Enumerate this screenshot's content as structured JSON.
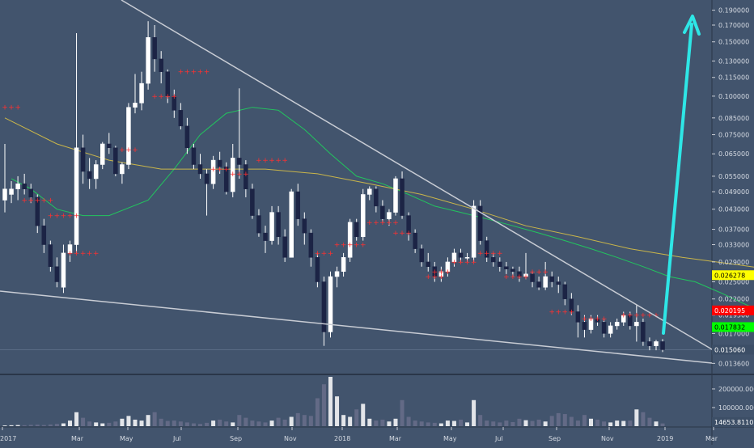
{
  "chart_data": {
    "type": "candlestick",
    "price_axis": {
      "scale": "log",
      "ticks": [
        "0.190000",
        "0.170000",
        "0.150000",
        "0.130000",
        "0.115000",
        "0.100000",
        "0.085000",
        "0.075000",
        "0.065000",
        "0.055000",
        "0.049000",
        "0.043000",
        "0.037000",
        "0.033000",
        "0.029000",
        "0.025000",
        "0.022000",
        "0.019500",
        "0.017000",
        "0.013600"
      ],
      "range": [
        0.0126,
        0.205
      ]
    },
    "time_axis": {
      "labels": [
        "2017",
        "Mar",
        "May",
        "Jul",
        "Sep",
        "Nov",
        "2018",
        "Mar",
        "May",
        "Jul",
        "Sep",
        "Nov",
        "2019",
        "Mar"
      ]
    },
    "price_badges": [
      {
        "label": "0.026278",
        "color": "#ffff00",
        "text_color": "#000000",
        "value": 0.026278
      },
      {
        "label": "0.020195",
        "color": "#ff0000",
        "text_color": "#ffffff",
        "value": 0.020195
      },
      {
        "label": "0.017832",
        "color": "#00ff00",
        "text_color": "#000000",
        "value": 0.017832
      },
      {
        "label": "0.015060",
        "color": "#3c4e66",
        "text_color": "#ffffff",
        "value": 0.01506
      }
    ],
    "volume_axis": {
      "ticks": [
        "200000.0000",
        "100000.0000"
      ],
      "current_label": "14653.8110",
      "max": 265000
    },
    "candles": [
      {
        "o": 0.046,
        "h": 0.07,
        "l": 0.042,
        "c": 0.05
      },
      {
        "o": 0.048,
        "h": 0.053,
        "l": 0.045,
        "c": 0.05
      },
      {
        "o": 0.05,
        "h": 0.055,
        "l": 0.046,
        "c": 0.052
      },
      {
        "o": 0.052,
        "h": 0.056,
        "l": 0.048,
        "c": 0.05
      },
      {
        "o": 0.05,
        "h": 0.052,
        "l": 0.045,
        "c": 0.047
      },
      {
        "o": 0.047,
        "h": 0.048,
        "l": 0.036,
        "c": 0.038
      },
      {
        "o": 0.038,
        "h": 0.04,
        "l": 0.031,
        "c": 0.033
      },
      {
        "o": 0.033,
        "h": 0.034,
        "l": 0.027,
        "c": 0.028
      },
      {
        "o": 0.028,
        "h": 0.03,
        "l": 0.024,
        "c": 0.025
      },
      {
        "o": 0.024,
        "h": 0.033,
        "l": 0.023,
        "c": 0.031
      },
      {
        "o": 0.031,
        "h": 0.034,
        "l": 0.029,
        "c": 0.033
      },
      {
        "o": 0.033,
        "h": 0.16,
        "l": 0.031,
        "c": 0.068
      },
      {
        "o": 0.068,
        "h": 0.075,
        "l": 0.052,
        "c": 0.057
      },
      {
        "o": 0.057,
        "h": 0.063,
        "l": 0.05,
        "c": 0.054
      },
      {
        "o": 0.054,
        "h": 0.062,
        "l": 0.05,
        "c": 0.06
      },
      {
        "o": 0.06,
        "h": 0.071,
        "l": 0.058,
        "c": 0.07
      },
      {
        "o": 0.07,
        "h": 0.076,
        "l": 0.065,
        "c": 0.068
      },
      {
        "o": 0.068,
        "h": 0.069,
        "l": 0.055,
        "c": 0.056
      },
      {
        "o": 0.056,
        "h": 0.061,
        "l": 0.052,
        "c": 0.06
      },
      {
        "o": 0.06,
        "h": 0.095,
        "l": 0.058,
        "c": 0.092
      },
      {
        "o": 0.092,
        "h": 0.118,
        "l": 0.088,
        "c": 0.095
      },
      {
        "o": 0.095,
        "h": 0.12,
        "l": 0.09,
        "c": 0.11
      },
      {
        "o": 0.11,
        "h": 0.175,
        "l": 0.105,
        "c": 0.155
      },
      {
        "o": 0.155,
        "h": 0.17,
        "l": 0.12,
        "c": 0.132
      },
      {
        "o": 0.132,
        "h": 0.14,
        "l": 0.11,
        "c": 0.12
      },
      {
        "o": 0.12,
        "h": 0.122,
        "l": 0.095,
        "c": 0.1
      },
      {
        "o": 0.1,
        "h": 0.105,
        "l": 0.085,
        "c": 0.09
      },
      {
        "o": 0.09,
        "h": 0.095,
        "l": 0.078,
        "c": 0.08
      },
      {
        "o": 0.08,
        "h": 0.085,
        "l": 0.065,
        "c": 0.068
      },
      {
        "o": 0.068,
        "h": 0.07,
        "l": 0.058,
        "c": 0.06
      },
      {
        "o": 0.06,
        "h": 0.065,
        "l": 0.054,
        "c": 0.056
      },
      {
        "o": 0.056,
        "h": 0.058,
        "l": 0.041,
        "c": 0.052
      },
      {
        "o": 0.052,
        "h": 0.064,
        "l": 0.05,
        "c": 0.062
      },
      {
        "o": 0.062,
        "h": 0.066,
        "l": 0.056,
        "c": 0.059
      },
      {
        "o": 0.059,
        "h": 0.061,
        "l": 0.048,
        "c": 0.049
      },
      {
        "o": 0.049,
        "h": 0.07,
        "l": 0.047,
        "c": 0.063
      },
      {
        "o": 0.063,
        "h": 0.106,
        "l": 0.054,
        "c": 0.06
      },
      {
        "o": 0.06,
        "h": 0.062,
        "l": 0.047,
        "c": 0.05
      },
      {
        "o": 0.05,
        "h": 0.052,
        "l": 0.04,
        "c": 0.041
      },
      {
        "o": 0.041,
        "h": 0.043,
        "l": 0.035,
        "c": 0.036
      },
      {
        "o": 0.036,
        "h": 0.038,
        "l": 0.031,
        "c": 0.034
      },
      {
        "o": 0.034,
        "h": 0.044,
        "l": 0.033,
        "c": 0.042
      },
      {
        "o": 0.042,
        "h": 0.044,
        "l": 0.033,
        "c": 0.035
      },
      {
        "o": 0.035,
        "h": 0.037,
        "l": 0.029,
        "c": 0.03
      },
      {
        "o": 0.03,
        "h": 0.05,
        "l": 0.03,
        "c": 0.049
      },
      {
        "o": 0.049,
        "h": 0.052,
        "l": 0.038,
        "c": 0.04
      },
      {
        "o": 0.04,
        "h": 0.042,
        "l": 0.033,
        "c": 0.036
      },
      {
        "o": 0.036,
        "h": 0.037,
        "l": 0.028,
        "c": 0.03
      },
      {
        "o": 0.03,
        "h": 0.031,
        "l": 0.024,
        "c": 0.025
      },
      {
        "o": 0.025,
        "h": 0.026,
        "l": 0.0155,
        "c": 0.0172
      },
      {
        "o": 0.0172,
        "h": 0.027,
        "l": 0.0165,
        "c": 0.026
      },
      {
        "o": 0.026,
        "h": 0.028,
        "l": 0.024,
        "c": 0.027
      },
      {
        "o": 0.027,
        "h": 0.031,
        "l": 0.026,
        "c": 0.03
      },
      {
        "o": 0.03,
        "h": 0.04,
        "l": 0.029,
        "c": 0.039
      },
      {
        "o": 0.039,
        "h": 0.04,
        "l": 0.034,
        "c": 0.035
      },
      {
        "o": 0.035,
        "h": 0.05,
        "l": 0.034,
        "c": 0.048
      },
      {
        "o": 0.048,
        "h": 0.051,
        "l": 0.046,
        "c": 0.05
      },
      {
        "o": 0.05,
        "h": 0.051,
        "l": 0.042,
        "c": 0.044
      },
      {
        "o": 0.044,
        "h": 0.046,
        "l": 0.039,
        "c": 0.04
      },
      {
        "o": 0.04,
        "h": 0.043,
        "l": 0.038,
        "c": 0.042
      },
      {
        "o": 0.042,
        "h": 0.055,
        "l": 0.041,
        "c": 0.054
      },
      {
        "o": 0.054,
        "h": 0.057,
        "l": 0.04,
        "c": 0.041
      },
      {
        "o": 0.041,
        "h": 0.042,
        "l": 0.034,
        "c": 0.036
      },
      {
        "o": 0.036,
        "h": 0.037,
        "l": 0.031,
        "c": 0.032
      },
      {
        "o": 0.032,
        "h": 0.033,
        "l": 0.028,
        "c": 0.029
      },
      {
        "o": 0.029,
        "h": 0.031,
        "l": 0.027,
        "c": 0.028
      },
      {
        "o": 0.028,
        "h": 0.029,
        "l": 0.025,
        "c": 0.026
      },
      {
        "o": 0.026,
        "h": 0.028,
        "l": 0.025,
        "c": 0.027
      },
      {
        "o": 0.027,
        "h": 0.03,
        "l": 0.026,
        "c": 0.029
      },
      {
        "o": 0.029,
        "h": 0.032,
        "l": 0.028,
        "c": 0.031
      },
      {
        "o": 0.031,
        "h": 0.032,
        "l": 0.029,
        "c": 0.03
      },
      {
        "o": 0.03,
        "h": 0.031,
        "l": 0.029,
        "c": 0.03
      },
      {
        "o": 0.03,
        "h": 0.046,
        "l": 0.029,
        "c": 0.044
      },
      {
        "o": 0.044,
        "h": 0.046,
        "l": 0.033,
        "c": 0.034
      },
      {
        "o": 0.034,
        "h": 0.035,
        "l": 0.029,
        "c": 0.03
      },
      {
        "o": 0.03,
        "h": 0.031,
        "l": 0.028,
        "c": 0.029
      },
      {
        "o": 0.029,
        "h": 0.03,
        "l": 0.027,
        "c": 0.028
      },
      {
        "o": 0.028,
        "h": 0.029,
        "l": 0.0265,
        "c": 0.0275
      },
      {
        "o": 0.0275,
        "h": 0.028,
        "l": 0.026,
        "c": 0.027
      },
      {
        "o": 0.027,
        "h": 0.028,
        "l": 0.025,
        "c": 0.026
      },
      {
        "o": 0.026,
        "h": 0.031,
        "l": 0.0255,
        "c": 0.0265
      },
      {
        "o": 0.0265,
        "h": 0.027,
        "l": 0.024,
        "c": 0.025
      },
      {
        "o": 0.025,
        "h": 0.026,
        "l": 0.0235,
        "c": 0.024
      },
      {
        "o": 0.024,
        "h": 0.029,
        "l": 0.0235,
        "c": 0.026
      },
      {
        "o": 0.026,
        "h": 0.027,
        "l": 0.024,
        "c": 0.025
      },
      {
        "o": 0.025,
        "h": 0.026,
        "l": 0.023,
        "c": 0.0245
      },
      {
        "o": 0.0245,
        "h": 0.025,
        "l": 0.021,
        "c": 0.022
      },
      {
        "o": 0.022,
        "h": 0.023,
        "l": 0.0195,
        "c": 0.02
      },
      {
        "o": 0.02,
        "h": 0.021,
        "l": 0.0165,
        "c": 0.0185
      },
      {
        "o": 0.0185,
        "h": 0.0195,
        "l": 0.0165,
        "c": 0.0175
      },
      {
        "o": 0.0175,
        "h": 0.0195,
        "l": 0.017,
        "c": 0.019
      },
      {
        "o": 0.019,
        "h": 0.0195,
        "l": 0.018,
        "c": 0.0185
      },
      {
        "o": 0.0185,
        "h": 0.019,
        "l": 0.0165,
        "c": 0.017
      },
      {
        "o": 0.017,
        "h": 0.0185,
        "l": 0.0165,
        "c": 0.018
      },
      {
        "o": 0.018,
        "h": 0.019,
        "l": 0.0175,
        "c": 0.0185
      },
      {
        "o": 0.0185,
        "h": 0.02,
        "l": 0.018,
        "c": 0.0195
      },
      {
        "o": 0.0195,
        "h": 0.02,
        "l": 0.0175,
        "c": 0.018
      },
      {
        "o": 0.018,
        "h": 0.021,
        "l": 0.016,
        "c": 0.0185
      },
      {
        "o": 0.0185,
        "h": 0.019,
        "l": 0.0155,
        "c": 0.016
      },
      {
        "o": 0.016,
        "h": 0.0165,
        "l": 0.015,
        "c": 0.0155
      },
      {
        "o": 0.0155,
        "h": 0.0162,
        "l": 0.015,
        "c": 0.016
      },
      {
        "o": 0.016,
        "h": 0.0163,
        "l": 0.0148,
        "c": 0.01506
      }
    ],
    "volume": [
      4000,
      5000,
      6000,
      5000,
      7000,
      8000,
      6000,
      9000,
      12000,
      15000,
      30000,
      75000,
      45000,
      25000,
      20000,
      15000,
      18000,
      25000,
      40000,
      55000,
      35000,
      30000,
      60000,
      75000,
      40000,
      28000,
      30000,
      25000,
      20000,
      15000,
      12000,
      18000,
      30000,
      35000,
      25000,
      20000,
      60000,
      45000,
      30000,
      25000,
      20000,
      30000,
      45000,
      35000,
      50000,
      70000,
      60000,
      55000,
      150000,
      225000,
      265000,
      160000,
      60000,
      50000,
      90000,
      120000,
      40000,
      30000,
      35000,
      25000,
      40000,
      140000,
      50000,
      30000,
      25000,
      20000,
      18000,
      15000,
      30000,
      28000,
      35000,
      20000,
      140000,
      60000,
      30000,
      25000,
      20000,
      30000,
      22000,
      40000,
      32000,
      28000,
      35000,
      25000,
      55000,
      70000,
      65000,
      50000,
      30000,
      60000,
      40000,
      35000,
      25000,
      20000,
      30000,
      28000,
      30000,
      90000,
      75000,
      45000,
      25000,
      14653.811
    ],
    "sma_green": [
      [
        0.054,
        1
      ],
      [
        0.05,
        4
      ],
      [
        0.043,
        8
      ],
      [
        0.041,
        12
      ],
      [
        0.041,
        16
      ],
      [
        0.046,
        22
      ],
      [
        0.058,
        26
      ],
      [
        0.075,
        30
      ],
      [
        0.088,
        34
      ],
      [
        0.092,
        38
      ],
      [
        0.09,
        42
      ],
      [
        0.078,
        46
      ],
      [
        0.065,
        50
      ],
      [
        0.055,
        54
      ],
      [
        0.052,
        58
      ],
      [
        0.048,
        62
      ],
      [
        0.044,
        66
      ],
      [
        0.042,
        70
      ],
      [
        0.04,
        74
      ],
      [
        0.038,
        78
      ],
      [
        0.036,
        82
      ],
      [
        0.034,
        86
      ],
      [
        0.032,
        90
      ],
      [
        0.03,
        94
      ],
      [
        0.028,
        98
      ],
      [
        0.026,
        102
      ],
      [
        0.025,
        106
      ],
      [
        0.023,
        110
      ],
      [
        0.021,
        114
      ],
      [
        0.0195,
        118
      ],
      [
        0.019,
        122
      ],
      [
        0.0185,
        126
      ],
      [
        0.0178,
        130
      ]
    ],
    "sma_yellow": [
      [
        0.085,
        0
      ],
      [
        0.07,
        8
      ],
      [
        0.062,
        16
      ],
      [
        0.058,
        24
      ],
      [
        0.058,
        32
      ],
      [
        0.058,
        40
      ],
      [
        0.056,
        48
      ],
      [
        0.052,
        56
      ],
      [
        0.048,
        64
      ],
      [
        0.043,
        72
      ],
      [
        0.038,
        80
      ],
      [
        0.035,
        88
      ],
      [
        0.032,
        96
      ],
      [
        0.03,
        104
      ],
      [
        0.0285,
        112
      ],
      [
        0.027,
        120
      ],
      [
        0.0263,
        126
      ]
    ]
  }
}
